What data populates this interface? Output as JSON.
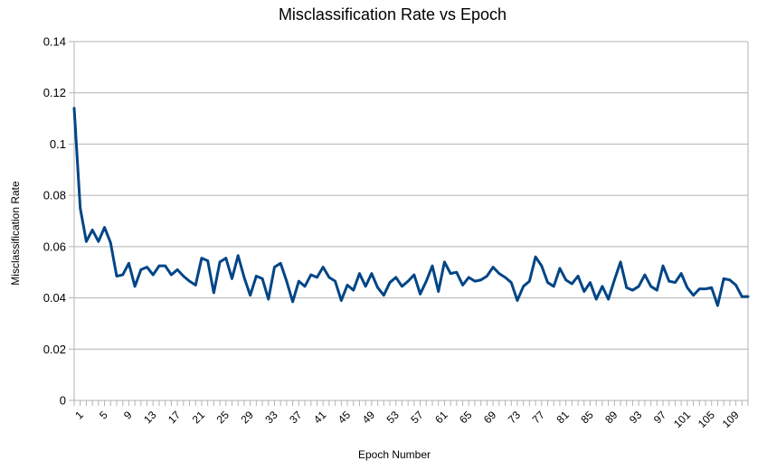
{
  "chart_data": {
    "type": "line",
    "title": "Misclassification Rate vs Epoch",
    "xlabel": "Epoch Number",
    "ylabel": "Misclassification Rate",
    "ylim": [
      0,
      0.14
    ],
    "yticks": [
      "0",
      "0.02",
      "0.04",
      "0.06",
      "0.08",
      "0.1",
      "0.12",
      "0.14"
    ],
    "xtick_labels": [
      "1",
      "5",
      "9",
      "13",
      "17",
      "21",
      "25",
      "29",
      "33",
      "37",
      "41",
      "45",
      "49",
      "53",
      "57",
      "61",
      "65",
      "69",
      "73",
      "77",
      "81",
      "85",
      "89",
      "93",
      "97",
      "101",
      "105",
      "109"
    ],
    "xtick_step": 4,
    "grid": true,
    "legend": "none",
    "line_color": "#004586",
    "x": [
      1,
      2,
      3,
      4,
      5,
      6,
      7,
      8,
      9,
      10,
      11,
      12,
      13,
      14,
      15,
      16,
      17,
      18,
      19,
      20,
      21,
      22,
      23,
      24,
      25,
      26,
      27,
      28,
      29,
      30,
      31,
      32,
      33,
      34,
      35,
      36,
      37,
      38,
      39,
      40,
      41,
      42,
      43,
      44,
      45,
      46,
      47,
      48,
      49,
      50,
      51,
      52,
      53,
      54,
      55,
      56,
      57,
      58,
      59,
      60,
      61,
      62,
      63,
      64,
      65,
      66,
      67,
      68,
      69,
      70,
      71,
      72,
      73,
      74,
      75,
      76,
      77,
      78,
      79,
      80,
      81,
      82,
      83,
      84,
      85,
      86,
      87,
      88,
      89,
      90,
      91,
      92,
      93,
      94,
      95,
      96,
      97,
      98,
      99,
      100,
      101,
      102,
      103,
      104,
      105,
      106,
      107,
      108,
      109,
      110,
      111,
      112
    ],
    "values": [
      0.114,
      0.075,
      0.062,
      0.0665,
      0.062,
      0.0675,
      0.0615,
      0.0485,
      0.049,
      0.0535,
      0.0445,
      0.051,
      0.052,
      0.049,
      0.0525,
      0.0525,
      0.049,
      0.051,
      0.0485,
      0.0465,
      0.045,
      0.0555,
      0.0545,
      0.042,
      0.054,
      0.0555,
      0.0475,
      0.0565,
      0.048,
      0.041,
      0.0485,
      0.0475,
      0.0395,
      0.052,
      0.0535,
      0.0465,
      0.0385,
      0.0465,
      0.0445,
      0.049,
      0.048,
      0.052,
      0.048,
      0.0465,
      0.039,
      0.045,
      0.043,
      0.0495,
      0.0445,
      0.0495,
      0.044,
      0.041,
      0.046,
      0.048,
      0.0445,
      0.0465,
      0.049,
      0.0415,
      0.0465,
      0.0525,
      0.0425,
      0.054,
      0.0495,
      0.05,
      0.045,
      0.048,
      0.0465,
      0.047,
      0.0485,
      0.052,
      0.0495,
      0.048,
      0.046,
      0.039,
      0.0445,
      0.0465,
      0.056,
      0.0525,
      0.046,
      0.0445,
      0.0515,
      0.047,
      0.0455,
      0.0485,
      0.0425,
      0.046,
      0.0395,
      0.0445,
      0.0395,
      0.047,
      0.054,
      0.044,
      0.043,
      0.0445,
      0.049,
      0.0445,
      0.043,
      0.0525,
      0.0465,
      0.046,
      0.0495,
      0.044,
      0.041,
      0.0435,
      0.0435,
      0.044,
      0.037,
      0.0475,
      0.047,
      0.045,
      0.0405,
      0.0405
    ]
  }
}
